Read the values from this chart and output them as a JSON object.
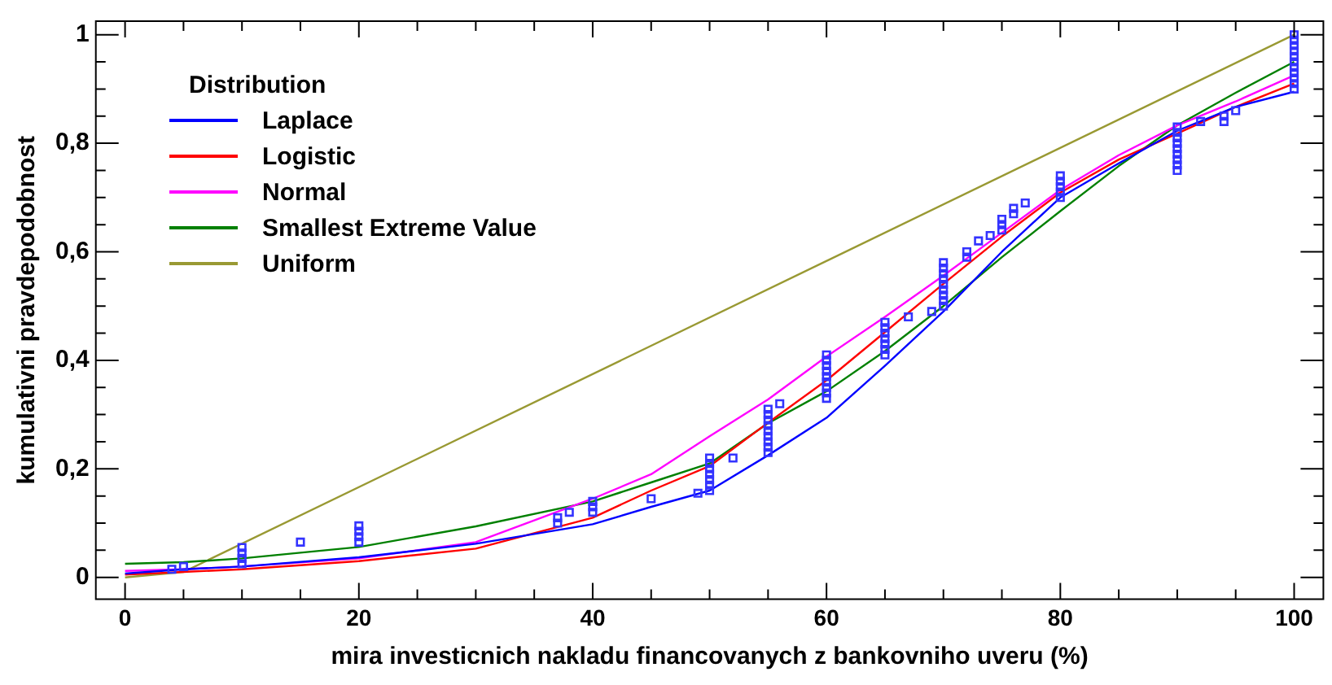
{
  "chart_data": {
    "type": "line",
    "xlabel": "mira investicnich nakladu financovanych z bankovniho uveru (%)",
    "ylabel": "kumulativni pravdepodobnost",
    "legend_title": "Distribution",
    "legend": "top left",
    "grid": false,
    "line_style": "solid",
    "xlim": [
      -2.5,
      102.5
    ],
    "ylim": [
      -0.04,
      1.025
    ],
    "xticks": [
      0,
      {
        "value": 5,
        "label": null
      },
      {
        "value": 10,
        "label": null
      },
      {
        "value": 15,
        "label": null
      },
      20,
      {
        "value": 25,
        "label": null
      },
      {
        "value": 30,
        "label": null
      },
      {
        "value": 35,
        "label": null
      },
      40,
      {
        "value": 45,
        "label": null
      },
      {
        "value": 50,
        "label": null
      },
      {
        "value": 55,
        "label": null
      },
      60,
      {
        "value": 65,
        "label": null
      },
      {
        "value": 70,
        "label": null
      },
      {
        "value": 75,
        "label": null
      },
      80,
      {
        "value": 85,
        "label": null
      },
      {
        "value": 90,
        "label": null
      },
      {
        "value": 95,
        "label": null
      },
      100
    ],
    "yticks": [
      {
        "value": 0,
        "label": "0"
      },
      {
        "value": 0.05,
        "label": null
      },
      {
        "value": 0.1,
        "label": null
      },
      {
        "value": 0.15,
        "label": null
      },
      {
        "value": 0.2,
        "label": "0,2"
      },
      {
        "value": 0.25,
        "label": null
      },
      {
        "value": 0.3,
        "label": null
      },
      {
        "value": 0.35,
        "label": null
      },
      {
        "value": 0.4,
        "label": "0,4"
      },
      {
        "value": 0.45,
        "label": null
      },
      {
        "value": 0.5,
        "label": null
      },
      {
        "value": 0.55,
        "label": null
      },
      {
        "value": 0.6,
        "label": "0,6"
      },
      {
        "value": 0.65,
        "label": null
      },
      {
        "value": 0.7,
        "label": null
      },
      {
        "value": 0.75,
        "label": null
      },
      {
        "value": 0.8,
        "label": "0,8"
      },
      {
        "value": 0.85,
        "label": null
      },
      {
        "value": 0.9,
        "label": null
      },
      {
        "value": 0.95,
        "label": null
      },
      {
        "value": 1,
        "label": "1"
      }
    ],
    "series": [
      {
        "type": "scatter",
        "marker": "square",
        "color": "#3333ff",
        "x": [
          4,
          5,
          10,
          10,
          10,
          10,
          15,
          20,
          20,
          20,
          20,
          37,
          37,
          38,
          40,
          40,
          40,
          45,
          49,
          50,
          50,
          50,
          50,
          50,
          50,
          50,
          52,
          55,
          55,
          55,
          55,
          55,
          55,
          55,
          55,
          55,
          56,
          60,
          60,
          60,
          60,
          60,
          60,
          60,
          60,
          60,
          65,
          65,
          65,
          65,
          65,
          65,
          65,
          67,
          69,
          70,
          70,
          70,
          70,
          70,
          70,
          70,
          70,
          70,
          72,
          72,
          73,
          74,
          75,
          75,
          75,
          76,
          76,
          77,
          80,
          80,
          80,
          80,
          80,
          90,
          90,
          90,
          90,
          90,
          90,
          90,
          90,
          90,
          92,
          94,
          94,
          95,
          100,
          100,
          100,
          100,
          100,
          100,
          100,
          100,
          100,
          100,
          100
        ],
        "values": [
          0.015,
          0.02,
          0.025,
          0.035,
          0.045,
          0.055,
          0.065,
          0.065,
          0.075,
          0.085,
          0.095,
          0.1,
          0.11,
          0.12,
          0.12,
          0.13,
          0.14,
          0.145,
          0.155,
          0.16,
          0.17,
          0.18,
          0.19,
          0.2,
          0.21,
          0.22,
          0.22,
          0.23,
          0.24,
          0.25,
          0.26,
          0.27,
          0.28,
          0.29,
          0.3,
          0.31,
          0.32,
          0.33,
          0.34,
          0.35,
          0.36,
          0.37,
          0.38,
          0.39,
          0.4,
          0.41,
          0.41,
          0.42,
          0.43,
          0.44,
          0.45,
          0.46,
          0.47,
          0.48,
          0.49,
          0.5,
          0.51,
          0.52,
          0.53,
          0.54,
          0.55,
          0.56,
          0.57,
          0.58,
          0.59,
          0.6,
          0.62,
          0.63,
          0.64,
          0.65,
          0.66,
          0.67,
          0.68,
          0.69,
          0.7,
          0.71,
          0.72,
          0.73,
          0.74,
          0.75,
          0.76,
          0.77,
          0.78,
          0.79,
          0.8,
          0.81,
          0.82,
          0.83,
          0.84,
          0.84,
          0.85,
          0.86,
          0.9,
          0.91,
          0.92,
          0.93,
          0.94,
          0.95,
          0.96,
          0.97,
          0.98,
          0.99,
          1.0
        ]
      },
      {
        "name": "Laplace",
        "color": "#0000ff",
        "marker": "none",
        "x": [
          0,
          5,
          10,
          20,
          30,
          40,
          45,
          50,
          55,
          60,
          65,
          70,
          75,
          80,
          85,
          90,
          95,
          100
        ],
        "values": [
          0.007,
          0.015,
          0.02,
          0.037,
          0.062,
          0.098,
          0.13,
          0.16,
          0.225,
          0.294,
          0.39,
          0.49,
          0.6,
          0.7,
          0.763,
          0.823,
          0.867,
          0.895
        ]
      },
      {
        "name": "Logistic",
        "color": "#ff0000",
        "marker": "none",
        "x": [
          0,
          5,
          10,
          20,
          30,
          40,
          45,
          50,
          55,
          60,
          65,
          70,
          75,
          80,
          85,
          90,
          95,
          100
        ],
        "values": [
          0.005,
          0.01,
          0.015,
          0.03,
          0.053,
          0.11,
          0.16,
          0.205,
          0.285,
          0.363,
          0.452,
          0.541,
          0.628,
          0.709,
          0.77,
          0.818,
          0.867,
          0.91
        ]
      },
      {
        "name": "Normal",
        "color": "#ff00ff",
        "marker": "none",
        "x": [
          0,
          5,
          10,
          20,
          30,
          40,
          45,
          50,
          55,
          60,
          65,
          70,
          75,
          80,
          85,
          90,
          95,
          100
        ],
        "values": [
          0.012,
          0.015,
          0.02,
          0.035,
          0.065,
          0.145,
          0.19,
          0.26,
          0.328,
          0.407,
          0.48,
          0.556,
          0.635,
          0.714,
          0.778,
          0.833,
          0.877,
          0.925
        ]
      },
      {
        "name": "Smallest Extreme Value",
        "color": "#008000",
        "marker": "none",
        "x": [
          0,
          5,
          10,
          20,
          30,
          40,
          45,
          50,
          55,
          60,
          65,
          70,
          75,
          80,
          85,
          90,
          95,
          100
        ],
        "values": [
          0.025,
          0.028,
          0.035,
          0.056,
          0.094,
          0.14,
          0.175,
          0.21,
          0.284,
          0.343,
          0.417,
          0.5,
          0.59,
          0.675,
          0.758,
          0.833,
          0.893,
          0.95
        ]
      },
      {
        "name": "Uniform",
        "color": "#999933",
        "marker": "none",
        "x": [
          0,
          5,
          100
        ],
        "values": [
          0,
          0.01,
          1
        ]
      }
    ]
  }
}
